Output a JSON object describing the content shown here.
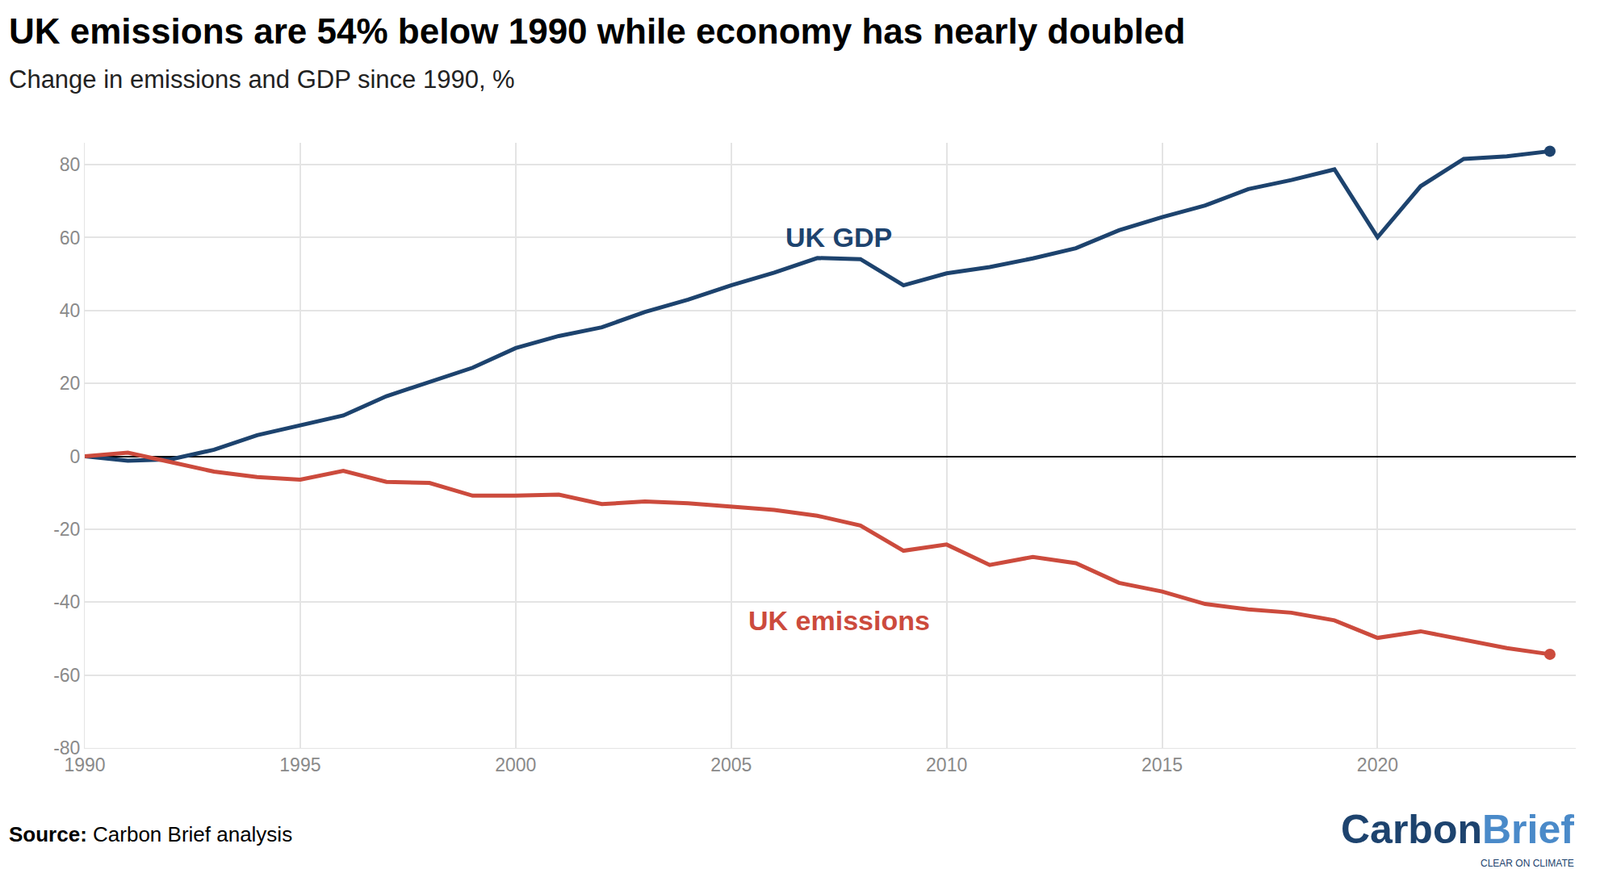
{
  "chart_data": {
    "type": "line",
    "title": "UK emissions are 54% below 1990 while economy has nearly doubled",
    "subtitle": "Change in emissions and GDP since 1990, %",
    "source_label": "Source:",
    "source": "Carbon Brief analysis",
    "logo": {
      "parts": [
        "Carbon",
        "Brief"
      ],
      "tagline": "CLEAR ON CLIMATE"
    },
    "x": [
      1990,
      1991,
      1992,
      1993,
      1994,
      1995,
      1996,
      1997,
      1998,
      1999,
      2000,
      2001,
      2002,
      2003,
      2004,
      2005,
      2006,
      2007,
      2008,
      2009,
      2010,
      2011,
      2012,
      2013,
      2014,
      2015,
      2016,
      2017,
      2018,
      2019,
      2020,
      2021,
      2022,
      2023,
      2024
    ],
    "series": [
      {
        "name": "UK GDP",
        "color": "#1d436e",
        "marker": "end",
        "values": [
          0,
          -1.2,
          -0.8,
          1.8,
          5.8,
          8.5,
          11.2,
          16.5,
          20.5,
          24.3,
          29.7,
          33.0,
          35.4,
          39.6,
          43.0,
          46.9,
          50.4,
          54.4,
          54.1,
          46.9,
          50.2,
          51.9,
          54.3,
          57.1,
          62.0,
          65.6,
          68.8,
          73.3,
          75.8,
          78.7,
          60.1,
          74.1,
          81.6,
          82.3,
          83.7
        ]
      },
      {
        "name": "UK emissions",
        "color": "#cc4b3d",
        "marker": "end",
        "values": [
          0,
          1.0,
          -1.6,
          -4.2,
          -5.7,
          -6.4,
          -4.0,
          -7.0,
          -7.3,
          -10.8,
          -10.8,
          -10.5,
          -13.1,
          -12.4,
          -12.9,
          -13.9,
          -14.7,
          -16.3,
          -19.0,
          -25.9,
          -24.2,
          -29.8,
          -27.6,
          -29.3,
          -34.7,
          -37.1,
          -40.5,
          -42.0,
          -42.9,
          -45.0,
          -49.8,
          -48.0,
          -50.3,
          -52.6,
          -54.3
        ]
      }
    ],
    "annotations": [
      {
        "text": "UK GDP",
        "x": 2007.5,
        "y": 60,
        "color": "#1d436e"
      },
      {
        "text": "UK emissions",
        "x": 2007.5,
        "y": -45,
        "color": "#cc4b3d"
      }
    ],
    "xlim": [
      1990,
      2024.6
    ],
    "xticks": [
      1990,
      1995,
      2000,
      2005,
      2010,
      2015,
      2020
    ],
    "ylim": [
      -80,
      86
    ],
    "yticks": [
      -80,
      -60,
      -40,
      -20,
      0,
      20,
      40,
      60,
      80
    ],
    "grid": true
  }
}
